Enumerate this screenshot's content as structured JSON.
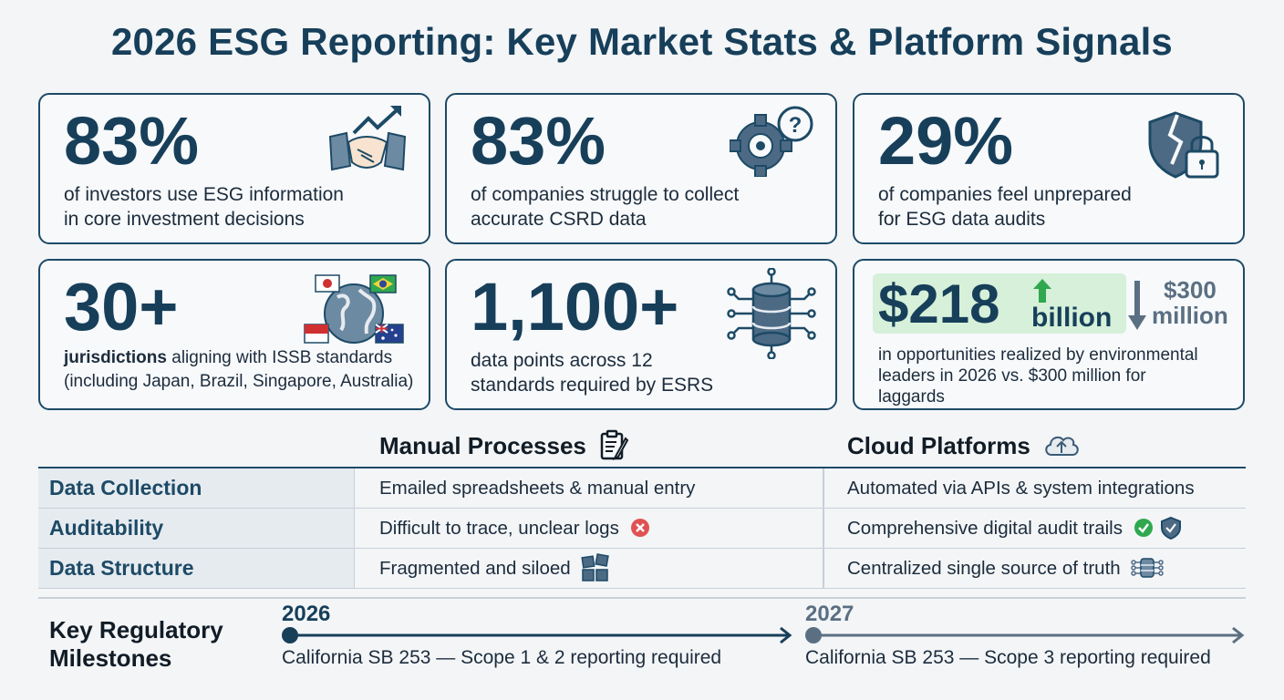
{
  "title": "2026 ESG Reporting: Key Market Stats & Platform Signals",
  "stats": [
    {
      "value": "83%",
      "desc_lines": [
        "of investors use ESG information",
        "in core investment decisions"
      ],
      "icon": "handshake-growth-icon"
    },
    {
      "value": "83%",
      "desc_lines": [
        "of companies struggle to collect",
        "accurate CSRD data"
      ],
      "icon": "gear-question-icon"
    },
    {
      "value": "29%",
      "desc_lines": [
        "of companies feel unprepared",
        "for ESG data audits"
      ],
      "icon": "broken-shield-lock-icon"
    },
    {
      "value": "30+",
      "desc_bold": "jurisdictions",
      "desc_rest": " aligning with ISSB standards",
      "desc_line2": "(including Japan, Brazil, Singapore, Australia)",
      "icon": "globe-flags-icon"
    },
    {
      "value": "1,100+",
      "desc_lines": [
        "data points across 12",
        "standards required by ESRS"
      ],
      "icon": "database-network-icon"
    },
    {
      "value": "$218",
      "unit": "billion",
      "alt_value": "$300",
      "alt_unit": "million",
      "desc_lines": [
        "in opportunities realized by environmental",
        "leaders in 2026 vs. $300 million for",
        "laggards"
      ],
      "icon": "arrow-up-down-icon",
      "highlight_color": "#d6f0d9"
    }
  ],
  "comparison": {
    "col_manual": "Manual Processes",
    "col_cloud": "Cloud Platforms",
    "rows": [
      {
        "label": "Data Collection",
        "manual": "Emailed spreadsheets & manual entry",
        "cloud": "Automated via APIs & system integrations"
      },
      {
        "label": "Auditability",
        "manual": "Difficult to trace, unclear logs",
        "cloud": "Comprehensive digital audit trails"
      },
      {
        "label": "Data Structure",
        "manual": "Fragmented and siloed",
        "cloud": "Centralized single source of truth"
      }
    ]
  },
  "milestones": {
    "title_lines": [
      "Key Regulatory",
      "Milestones"
    ],
    "items": [
      {
        "year": "2026",
        "text": "California SB 253 — Scope 1 & 2 reporting required",
        "color": "#173f5a"
      },
      {
        "year": "2027",
        "text": "California SB 253 — Scope 3 reporting required",
        "color": "#5b6f82"
      }
    ]
  },
  "colors": {
    "primary": "#173f5a",
    "positive": "#2fa84f",
    "negative": "#e05252",
    "muted": "#5b6f82"
  }
}
